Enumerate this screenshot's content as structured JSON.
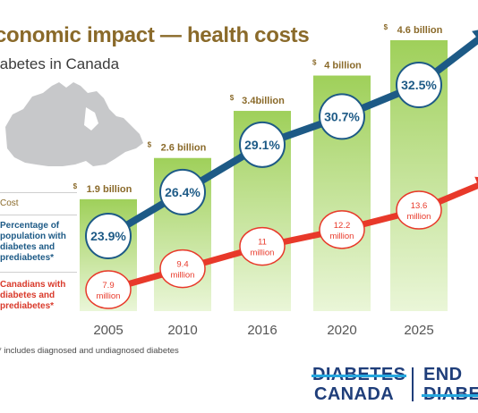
{
  "header": {
    "title": "conomic impact — health costs",
    "subtitle": "iabetes in Canada"
  },
  "legend": {
    "cost": "Cost",
    "percentage": "Percentage of population with diabetes and prediabetes*",
    "canadians": "Canadians with diabetes and prediabetes*"
  },
  "footnote": "* includes diagnosed and undiagnosed diabetes",
  "logo": {
    "line1": "DIABETES",
    "line2": "CANADA",
    "line3": "END",
    "line4": "DIABE"
  },
  "colors": {
    "gold": "#8a6a2a",
    "bar_top": "#9fd05a",
    "bar_bottom": "#eaf6d8",
    "blue": "#1d5a86",
    "red": "#e8392a",
    "map": "#c7c8ca"
  },
  "chart_data": {
    "type": "bar",
    "categories": [
      "2005",
      "2010",
      "2016",
      "2020",
      "2025"
    ],
    "series": [
      {
        "values": [
          1.9,
          2.6,
          3.4,
          4,
          4.6
        ],
        "labels": [
          "1.9 billion",
          "2.6 billion",
          "3.4billion",
          "4 billion",
          "4.6 billion"
        ]
      },
      {
        "values": [
          23.9,
          26.4,
          29.1,
          30.7,
          32.5
        ],
        "labels": [
          "23.9%",
          "26.4%",
          "29.1%",
          "30.7%",
          "32.5%"
        ]
      },
      {
        "values": [
          7.9,
          9.4,
          11,
          12.2,
          13.6
        ],
        "labels": [
          "7.9 million",
          "9.4 million",
          "11 million",
          "12.2 million",
          "13.6 million"
        ]
      }
    ],
    "currency_symbol": "$",
    "title": "",
    "xlabel": "",
    "ylabel": ""
  }
}
